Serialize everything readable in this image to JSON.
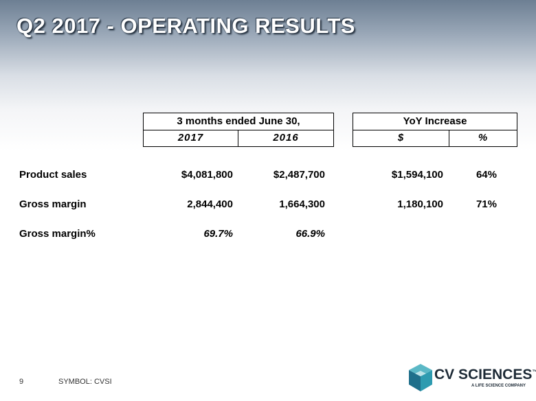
{
  "header": {
    "title": "Q2 2017 - OPERATING RESULTS"
  },
  "table": {
    "group_headers": [
      "3 months ended June 30,",
      "YoY Increase"
    ],
    "column_headers": [
      "2017",
      "2016",
      "$",
      "%"
    ],
    "rows": [
      [
        "Product sales",
        "$4,081,800",
        "$2,487,700",
        "$1,594,100",
        "64%"
      ],
      [
        "Gross margin",
        "2,844,400",
        "1,664,300",
        "1,180,100",
        "71%"
      ],
      [
        "Gross  margin%",
        "69.7%",
        "66.9%"
      ]
    ]
  },
  "footer": {
    "page_number": "9",
    "symbol": "SYMBOL: CVSI",
    "logo": {
      "name": "CV SCIENCES",
      "trademark": "™",
      "tagline": "A LIFE SCIENCE COMPANY"
    }
  }
}
